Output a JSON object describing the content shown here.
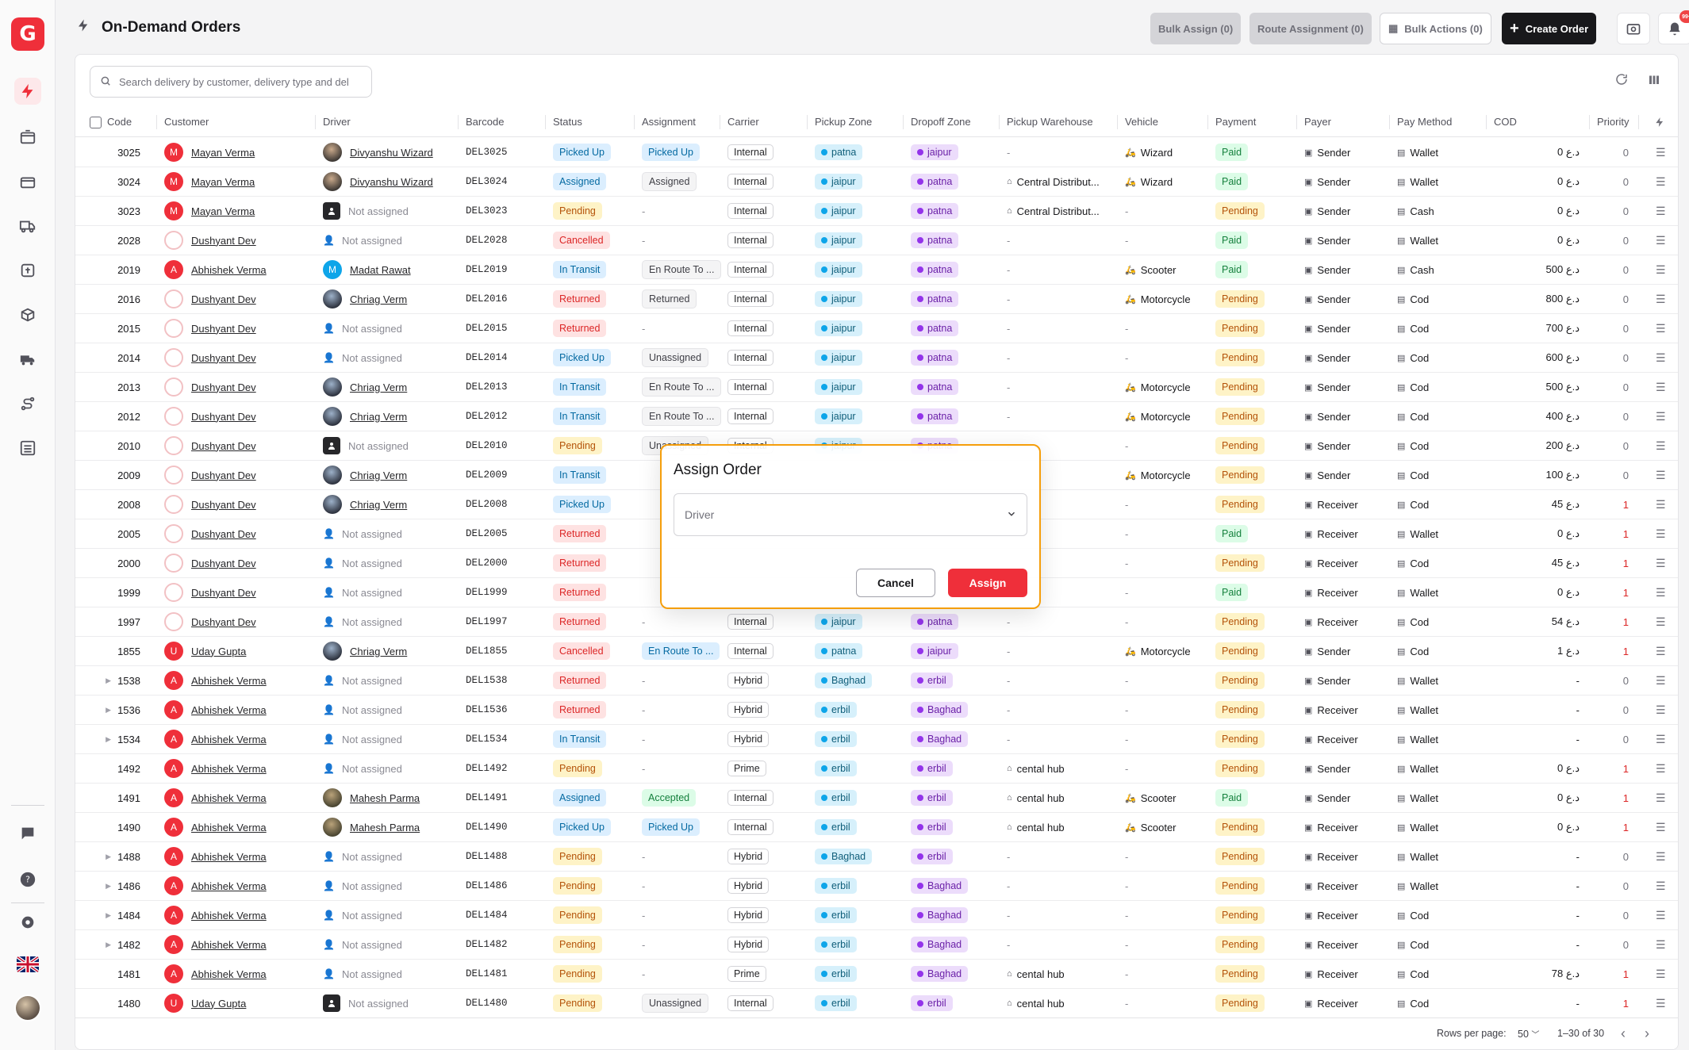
{
  "header": {
    "title": "On-Demand Orders",
    "bulk_assign": "Bulk Assign (0)",
    "route_assignment": "Route Assignment (0)",
    "bulk_actions": "Bulk Actions (0)",
    "create_order": "Create Order",
    "notification_count": "99+"
  },
  "search": {
    "placeholder": "Search delivery by customer, delivery type and del"
  },
  "columns": [
    "Code",
    "Customer",
    "Driver",
    "Barcode",
    "Status",
    "Assignment",
    "Carrier",
    "Pickup Zone",
    "Dropoff Zone",
    "Pickup Warehouse",
    "Vehicle",
    "Payment",
    "Payer",
    "Pay Method",
    "COD",
    "Priority"
  ],
  "rows": [
    {
      "code": "3025",
      "expand": false,
      "customer": "Mayan Verma",
      "cav": "M",
      "cstyle": "red",
      "driver": "Divyanshu Wizard",
      "dstyle": "photo",
      "barcode": "DEL3025",
      "status": "Picked Up",
      "st": "picked",
      "assignment": "Picked Up",
      "as": "blue",
      "carrier": "Internal",
      "pz": "patna",
      "dz": "jaipur",
      "wh": "-",
      "vehicle": "Wizard",
      "payment": "Paid",
      "payer": "Sender",
      "method": "Wallet",
      "cod": "0 د.ع",
      "priority": "0"
    },
    {
      "code": "3024",
      "expand": false,
      "customer": "Mayan Verma",
      "cav": "M",
      "cstyle": "red",
      "driver": "Divyanshu Wizard",
      "dstyle": "photo",
      "barcode": "DEL3024",
      "status": "Assigned",
      "st": "assigned",
      "assignment": "Assigned",
      "as": "gray",
      "carrier": "Internal",
      "pz": "jaipur",
      "dz": "patna",
      "wh": "Central Distribut...",
      "vehicle": "Wizard",
      "payment": "Paid",
      "payer": "Sender",
      "method": "Wallet",
      "cod": "0 د.ع",
      "priority": "0"
    },
    {
      "code": "3023",
      "expand": false,
      "customer": "Mayan Verma",
      "cav": "M",
      "cstyle": "red",
      "driver": "Not assigned",
      "dstyle": "dark",
      "barcode": "DEL3023",
      "status": "Pending",
      "st": "pending",
      "assignment": "-",
      "as": "none",
      "carrier": "Internal",
      "pz": "jaipur",
      "dz": "patna",
      "wh": "Central Distribut...",
      "vehicle": "-",
      "payment": "Pending",
      "payer": "Sender",
      "method": "Cash",
      "cod": "0 د.ع",
      "priority": "0"
    },
    {
      "code": "2028",
      "expand": false,
      "customer": "Dushyant Dev",
      "cav": "",
      "cstyle": "ring",
      "driver": "Not assigned",
      "dstyle": "none",
      "barcode": "DEL2028",
      "status": "Cancelled",
      "st": "cancelled",
      "assignment": "-",
      "as": "none",
      "carrier": "Internal",
      "pz": "jaipur",
      "dz": "patna",
      "wh": "-",
      "vehicle": "-",
      "payment": "Paid",
      "payer": "Sender",
      "method": "Wallet",
      "cod": "0 د.ع",
      "priority": "0"
    },
    {
      "code": "2019",
      "expand": false,
      "customer": "Abhishek Verma",
      "cav": "A",
      "cstyle": "red",
      "driver": "Madat Rawat",
      "dstyle": "blue",
      "dav": "M",
      "barcode": "DEL2019",
      "status": "In Transit",
      "st": "transit",
      "assignment": "En Route To ...",
      "as": "gray",
      "carrier": "Internal",
      "pz": "jaipur",
      "dz": "patna",
      "wh": "-",
      "vehicle": "Scooter",
      "payment": "Paid",
      "payer": "Sender",
      "method": "Cash",
      "cod": "500 د.ع",
      "priority": "0"
    },
    {
      "code": "2016",
      "expand": false,
      "customer": "Dushyant Dev",
      "cav": "",
      "cstyle": "ring",
      "driver": "Chriag Verm",
      "dstyle": "photo2",
      "barcode": "DEL2016",
      "status": "Returned",
      "st": "returned",
      "assignment": "Returned",
      "as": "gray",
      "carrier": "Internal",
      "pz": "jaipur",
      "dz": "patna",
      "wh": "-",
      "vehicle": "Motorcycle",
      "payment": "Pending",
      "payer": "Sender",
      "method": "Cod",
      "cod": "800 د.ع",
      "priority": "0"
    },
    {
      "code": "2015",
      "expand": false,
      "customer": "Dushyant Dev",
      "cav": "",
      "cstyle": "ring",
      "driver": "Not assigned",
      "dstyle": "none",
      "barcode": "DEL2015",
      "status": "Returned",
      "st": "returned",
      "assignment": "-",
      "as": "none",
      "carrier": "Internal",
      "pz": "jaipur",
      "dz": "patna",
      "wh": "-",
      "vehicle": "-",
      "payment": "Pending",
      "payer": "Sender",
      "method": "Cod",
      "cod": "700 د.ع",
      "priority": "0"
    },
    {
      "code": "2014",
      "expand": false,
      "customer": "Dushyant Dev",
      "cav": "",
      "cstyle": "ring",
      "driver": "Not assigned",
      "dstyle": "none",
      "barcode": "DEL2014",
      "status": "Picked Up",
      "st": "picked",
      "assignment": "Unassigned",
      "as": "gray",
      "carrier": "Internal",
      "pz": "jaipur",
      "dz": "patna",
      "wh": "-",
      "vehicle": "-",
      "payment": "Pending",
      "payer": "Sender",
      "method": "Cod",
      "cod": "600 د.ع",
      "priority": "0"
    },
    {
      "code": "2013",
      "expand": false,
      "customer": "Dushyant Dev",
      "cav": "",
      "cstyle": "ring",
      "driver": "Chriag Verm",
      "dstyle": "photo2",
      "barcode": "DEL2013",
      "status": "In Transit",
      "st": "transit",
      "assignment": "En Route To ...",
      "as": "gray",
      "carrier": "Internal",
      "pz": "jaipur",
      "dz": "patna",
      "wh": "-",
      "vehicle": "Motorcycle",
      "payment": "Pending",
      "payer": "Sender",
      "method": "Cod",
      "cod": "500 د.ع",
      "priority": "0"
    },
    {
      "code": "2012",
      "expand": false,
      "customer": "Dushyant Dev",
      "cav": "",
      "cstyle": "ring",
      "driver": "Chriag Verm",
      "dstyle": "photo2",
      "barcode": "DEL2012",
      "status": "In Transit",
      "st": "transit",
      "assignment": "En Route To ...",
      "as": "gray",
      "carrier": "Internal",
      "pz": "jaipur",
      "dz": "patna",
      "wh": "-",
      "vehicle": "Motorcycle",
      "payment": "Pending",
      "payer": "Sender",
      "method": "Cod",
      "cod": "400 د.ع",
      "priority": "0"
    },
    {
      "code": "2010",
      "expand": false,
      "customer": "Dushyant Dev",
      "cav": "",
      "cstyle": "ring",
      "driver": "Not assigned",
      "dstyle": "dark",
      "barcode": "DEL2010",
      "status": "Pending",
      "st": "pending",
      "assignment": "Unassigned",
      "as": "gray",
      "carrier": "Internal",
      "pz": "jaipur",
      "dz": "patna",
      "wh": "-",
      "vehicle": "-",
      "payment": "Pending",
      "payer": "Sender",
      "method": "Cod",
      "cod": "200 د.ع",
      "priority": "0"
    },
    {
      "code": "2009",
      "expand": false,
      "customer": "Dushyant Dev",
      "cav": "",
      "cstyle": "ring",
      "driver": "Chriag Verm",
      "dstyle": "photo2",
      "barcode": "DEL2009",
      "status": "In Transit",
      "st": "transit",
      "assignment": "",
      "as": "hidden",
      "carrier": "",
      "pz": "",
      "dz": "",
      "wh": "",
      "vehicle": "Motorcycle",
      "payment": "Pending",
      "payer": "Sender",
      "method": "Cod",
      "cod": "100 د.ع",
      "priority": "0"
    },
    {
      "code": "2008",
      "expand": false,
      "customer": "Dushyant Dev",
      "cav": "",
      "cstyle": "ring",
      "driver": "Chriag Verm",
      "dstyle": "photo2",
      "barcode": "DEL2008",
      "status": "Picked Up",
      "st": "picked",
      "assignment": "",
      "as": "hidden",
      "carrier": "",
      "pz": "",
      "dz": "",
      "wh": "",
      "vehicle": "-",
      "payment": "Pending",
      "payer": "Receiver",
      "method": "Cod",
      "cod": "45 د.ع",
      "priority": "1"
    },
    {
      "code": "2005",
      "expand": false,
      "customer": "Dushyant Dev",
      "cav": "",
      "cstyle": "ring",
      "driver": "Not assigned",
      "dstyle": "none",
      "barcode": "DEL2005",
      "status": "Returned",
      "st": "returned",
      "assignment": "",
      "as": "hidden",
      "carrier": "",
      "pz": "",
      "dz": "",
      "wh": "",
      "vehicle": "-",
      "payment": "Paid",
      "payer": "Receiver",
      "method": "Wallet",
      "cod": "0 د.ع",
      "priority": "1"
    },
    {
      "code": "2000",
      "expand": false,
      "customer": "Dushyant Dev",
      "cav": "",
      "cstyle": "ring",
      "driver": "Not assigned",
      "dstyle": "none",
      "barcode": "DEL2000",
      "status": "Returned",
      "st": "returned",
      "assignment": "",
      "as": "hidden",
      "carrier": "",
      "pz": "",
      "dz": "",
      "wh": "",
      "vehicle": "-",
      "payment": "Pending",
      "payer": "Receiver",
      "method": "Cod",
      "cod": "45 د.ع",
      "priority": "1"
    },
    {
      "code": "1999",
      "expand": false,
      "customer": "Dushyant Dev",
      "cav": "",
      "cstyle": "ring",
      "driver": "Not assigned",
      "dstyle": "none",
      "barcode": "DEL1999",
      "status": "Returned",
      "st": "returned",
      "assignment": "",
      "as": "hidden",
      "carrier": "",
      "pz": "",
      "dz": "",
      "wh": "",
      "vehicle": "-",
      "payment": "Paid",
      "payer": "Receiver",
      "method": "Wallet",
      "cod": "0 د.ع",
      "priority": "1"
    },
    {
      "code": "1997",
      "expand": false,
      "customer": "Dushyant Dev",
      "cav": "",
      "cstyle": "ring",
      "driver": "Not assigned",
      "dstyle": "none",
      "barcode": "DEL1997",
      "status": "Returned",
      "st": "returned",
      "assignment": "-",
      "as": "none",
      "carrier": "Internal",
      "pz": "jaipur",
      "dz": "patna",
      "wh": "-",
      "vehicle": "-",
      "payment": "Pending",
      "payer": "Receiver",
      "method": "Cod",
      "cod": "54 د.ع",
      "priority": "1"
    },
    {
      "code": "1855",
      "expand": false,
      "customer": "Uday Gupta",
      "cav": "U",
      "cstyle": "red",
      "driver": "Chriag Verm",
      "dstyle": "photo2",
      "barcode": "DEL1855",
      "status": "Cancelled",
      "st": "cancelled",
      "assignment": "En Route To ...",
      "as": "blue",
      "carrier": "Internal",
      "pz": "patna",
      "dz": "jaipur",
      "wh": "-",
      "vehicle": "Motorcycle",
      "payment": "Pending",
      "payer": "Sender",
      "method": "Cod",
      "cod": "1 د.ع",
      "priority": "1"
    },
    {
      "code": "1538",
      "expand": true,
      "customer": "Abhishek Verma",
      "cav": "A",
      "cstyle": "red",
      "driver": "Not assigned",
      "dstyle": "none",
      "barcode": "DEL1538",
      "status": "Returned",
      "st": "returned",
      "assignment": "-",
      "as": "none",
      "carrier": "Hybrid",
      "pz": "Baghad",
      "dz": "erbil",
      "wh": "-",
      "vehicle": "-",
      "payment": "Pending",
      "payer": "Sender",
      "method": "Wallet",
      "cod": "-",
      "priority": "0"
    },
    {
      "code": "1536",
      "expand": true,
      "customer": "Abhishek Verma",
      "cav": "A",
      "cstyle": "red",
      "driver": "Not assigned",
      "dstyle": "none",
      "barcode": "DEL1536",
      "status": "Returned",
      "st": "returned",
      "assignment": "-",
      "as": "none",
      "carrier": "Hybrid",
      "pz": "erbil",
      "dz": "Baghad",
      "wh": "-",
      "vehicle": "-",
      "payment": "Pending",
      "payer": "Receiver",
      "method": "Wallet",
      "cod": "-",
      "priority": "0"
    },
    {
      "code": "1534",
      "expand": true,
      "customer": "Abhishek Verma",
      "cav": "A",
      "cstyle": "red",
      "driver": "Not assigned",
      "dstyle": "none",
      "barcode": "DEL1534",
      "status": "In Transit",
      "st": "transit",
      "assignment": "-",
      "as": "none",
      "carrier": "Hybrid",
      "pz": "erbil",
      "dz": "Baghad",
      "wh": "-",
      "vehicle": "-",
      "payment": "Pending",
      "payer": "Receiver",
      "method": "Wallet",
      "cod": "-",
      "priority": "0"
    },
    {
      "code": "1492",
      "expand": false,
      "customer": "Abhishek Verma",
      "cav": "A",
      "cstyle": "red",
      "driver": "Not assigned",
      "dstyle": "none",
      "barcode": "DEL1492",
      "status": "Pending",
      "st": "pending",
      "assignment": "-",
      "as": "none",
      "carrier": "Prime",
      "pz": "erbil",
      "dz": "erbil",
      "wh": "cental hub",
      "vehicle": "-",
      "payment": "Pending",
      "payer": "Sender",
      "method": "Wallet",
      "cod": "0 د.ع",
      "priority": "1"
    },
    {
      "code": "1491",
      "expand": false,
      "customer": "Abhishek Verma",
      "cav": "A",
      "cstyle": "red",
      "driver": "Mahesh Parma",
      "dstyle": "photo3",
      "barcode": "DEL1491",
      "status": "Assigned",
      "st": "assigned",
      "assignment": "Accepted",
      "as": "green",
      "carrier": "Internal",
      "pz": "erbil",
      "dz": "erbil",
      "wh": "cental hub",
      "vehicle": "Scooter",
      "payment": "Paid",
      "payer": "Sender",
      "method": "Wallet",
      "cod": "0 د.ع",
      "priority": "1"
    },
    {
      "code": "1490",
      "expand": false,
      "customer": "Abhishek Verma",
      "cav": "A",
      "cstyle": "red",
      "driver": "Mahesh Parma",
      "dstyle": "photo3",
      "barcode": "DEL1490",
      "status": "Picked Up",
      "st": "picked",
      "assignment": "Picked Up",
      "as": "blue",
      "carrier": "Internal",
      "pz": "erbil",
      "dz": "erbil",
      "wh": "cental hub",
      "vehicle": "Scooter",
      "payment": "Pending",
      "payer": "Receiver",
      "method": "Wallet",
      "cod": "0 د.ع",
      "priority": "1"
    },
    {
      "code": "1488",
      "expand": true,
      "customer": "Abhishek Verma",
      "cav": "A",
      "cstyle": "red",
      "driver": "Not assigned",
      "dstyle": "none",
      "barcode": "DEL1488",
      "status": "Pending",
      "st": "pending",
      "assignment": "-",
      "as": "none",
      "carrier": "Hybrid",
      "pz": "Baghad",
      "dz": "erbil",
      "wh": "-",
      "vehicle": "-",
      "payment": "Pending",
      "payer": "Receiver",
      "method": "Wallet",
      "cod": "-",
      "priority": "0"
    },
    {
      "code": "1486",
      "expand": true,
      "customer": "Abhishek Verma",
      "cav": "A",
      "cstyle": "red",
      "driver": "Not assigned",
      "dstyle": "none",
      "barcode": "DEL1486",
      "status": "Pending",
      "st": "pending",
      "assignment": "-",
      "as": "none",
      "carrier": "Hybrid",
      "pz": "erbil",
      "dz": "Baghad",
      "wh": "-",
      "vehicle": "-",
      "payment": "Pending",
      "payer": "Receiver",
      "method": "Wallet",
      "cod": "-",
      "priority": "0"
    },
    {
      "code": "1484",
      "expand": true,
      "customer": "Abhishek Verma",
      "cav": "A",
      "cstyle": "red",
      "driver": "Not assigned",
      "dstyle": "none",
      "barcode": "DEL1484",
      "status": "Pending",
      "st": "pending",
      "assignment": "-",
      "as": "none",
      "carrier": "Hybrid",
      "pz": "erbil",
      "dz": "Baghad",
      "wh": "-",
      "vehicle": "-",
      "payment": "Pending",
      "payer": "Receiver",
      "method": "Cod",
      "cod": "-",
      "priority": "0"
    },
    {
      "code": "1482",
      "expand": true,
      "customer": "Abhishek Verma",
      "cav": "A",
      "cstyle": "red",
      "driver": "Not assigned",
      "dstyle": "none",
      "barcode": "DEL1482",
      "status": "Pending",
      "st": "pending",
      "assignment": "-",
      "as": "none",
      "carrier": "Hybrid",
      "pz": "erbil",
      "dz": "Baghad",
      "wh": "-",
      "vehicle": "-",
      "payment": "Pending",
      "payer": "Receiver",
      "method": "Cod",
      "cod": "-",
      "priority": "0"
    },
    {
      "code": "1481",
      "expand": false,
      "customer": "Abhishek Verma",
      "cav": "A",
      "cstyle": "red",
      "driver": "Not assigned",
      "dstyle": "none",
      "barcode": "DEL1481",
      "status": "Pending",
      "st": "pending",
      "assignment": "-",
      "as": "none",
      "carrier": "Prime",
      "pz": "erbil",
      "dz": "Baghad",
      "wh": "cental hub",
      "vehicle": "-",
      "payment": "Pending",
      "payer": "Receiver",
      "method": "Cod",
      "cod": "78 د.ع",
      "priority": "1"
    },
    {
      "code": "1480",
      "expand": false,
      "customer": "Uday Gupta",
      "cav": "U",
      "cstyle": "red",
      "driver": "Not assigned",
      "dstyle": "dark",
      "barcode": "DEL1480",
      "status": "Pending",
      "st": "pending",
      "assignment": "Unassigned",
      "as": "gray",
      "carrier": "Internal",
      "pz": "erbil",
      "dz": "erbil",
      "wh": "cental hub",
      "vehicle": "-",
      "payment": "Pending",
      "payer": "Receiver",
      "method": "Cod",
      "cod": "-",
      "priority": "1"
    }
  ],
  "footer": {
    "rows_per_page_label": "Rows per page:",
    "rows_per_page": "50",
    "range": "1–30 of 30"
  },
  "dialog": {
    "title": "Assign Order",
    "driver_placeholder": "Driver",
    "cancel": "Cancel",
    "assign": "Assign"
  },
  "colors": {
    "brand": "#ef2f3a",
    "dialog_border": "#f59e0b"
  }
}
